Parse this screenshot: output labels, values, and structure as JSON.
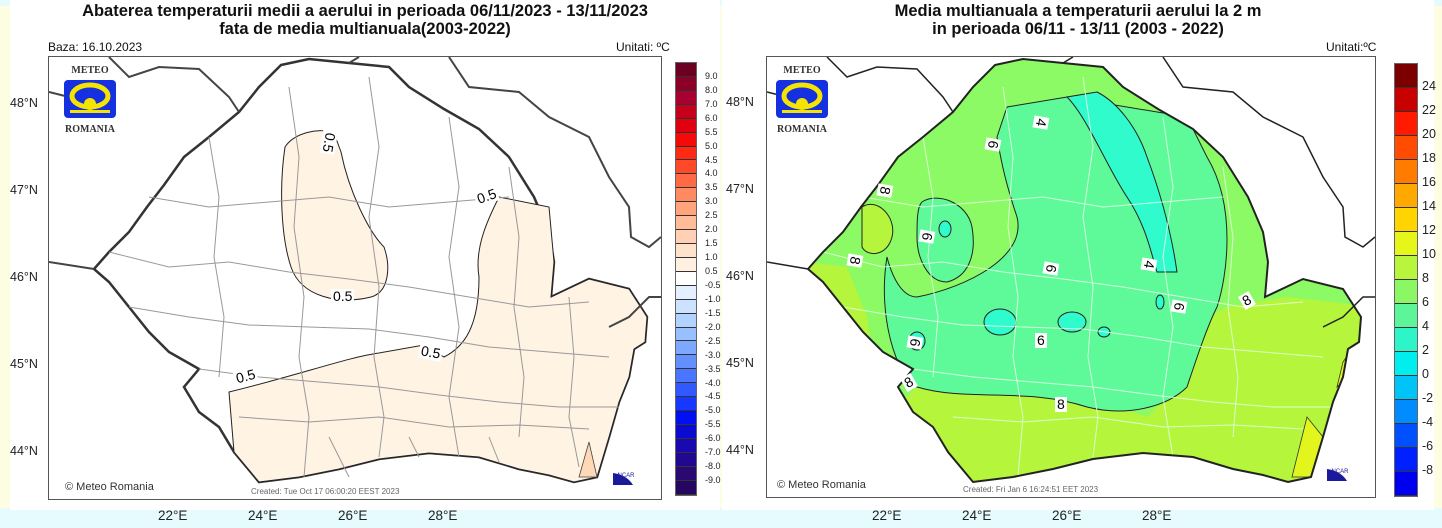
{
  "left_map": {
    "title_line1": "Abaterea temperaturii medii a aerului in perioada 06/11/2023 - 13/11/2023",
    "title_line2": "fata de media multianuala(2003-2022)",
    "base_label": "Baza: 16.10.2023",
    "units_label": "Unitati: ºC",
    "logo_top": "METEO",
    "logo_bottom": "ROMANIA",
    "copyright": "© Meteo Romania",
    "created": "Created: Tue Oct 17 06:00:20 EEST 2023",
    "ncar": "NCAR",
    "lat_labels": [
      "48°N",
      "47°N",
      "46°N",
      "45°N",
      "44°N"
    ],
    "lon_labels": [
      "22°E",
      "24°E",
      "26°E",
      "28°E"
    ],
    "contour_labels": [
      "0.5",
      "0.5",
      "0.5",
      "0.5",
      "0.5",
      "0.5"
    ],
    "colorbar": {
      "labels": [
        "9.0",
        "8.0",
        "7.0",
        "6.0",
        "5.5",
        "5.0",
        "4.5",
        "4.0",
        "3.5",
        "3.0",
        "2.5",
        "2.0",
        "1.5",
        "1.0",
        "0.5",
        "-0.5",
        "-1.0",
        "-1.5",
        "-2.0",
        "-2.5",
        "-3.0",
        "-3.5",
        "-4.0",
        "-4.5",
        "-5.0",
        "-5.5",
        "-6.0",
        "-7.0",
        "-8.0",
        "-9.0"
      ],
      "colors": [
        "#6b0022",
        "#8c0028",
        "#a80030",
        "#c4001c",
        "#e00010",
        "#f50a0a",
        "#ff2a14",
        "#ff4a2a",
        "#ff6a44",
        "#ff8a60",
        "#ffa47c",
        "#ffbc98",
        "#ffd0b4",
        "#ffe2cc",
        "#fff0e2",
        "#ffffff",
        "#e4f0ff",
        "#cce2ff",
        "#b2d2ff",
        "#98c0ff",
        "#7ea8ff",
        "#6490ff",
        "#4a76ff",
        "#305aff",
        "#1638ff",
        "#0010f0",
        "#0a0ad0",
        "#1a08b0",
        "#200890",
        "#2a0a70",
        "#260660"
      ]
    }
  },
  "right_map": {
    "title_line1": "Media multianuala a temperaturii aerului la 2 m",
    "title_line2": "in perioada 06/11 - 13/11 (2003 - 2022)",
    "units_label": "Unitati:ºC",
    "logo_top": "METEO",
    "logo_bottom": "ROMANIA",
    "copyright": "© Meteo Romania",
    "created": "Created: Fri Jan  6 16:24:51 EET 2023",
    "ncar": "NCAR",
    "lat_labels": [
      "48°N",
      "47°N",
      "46°N",
      "45°N",
      "44°N"
    ],
    "lon_labels": [
      "22°E",
      "24°E",
      "26°E",
      "28°E"
    ],
    "contour_labels": [
      "4",
      "6",
      "8",
      "6",
      "8",
      "4",
      "6",
      "8",
      "6",
      "6",
      "6",
      "8",
      "8"
    ],
    "colorbar": {
      "labels": [
        "24",
        "22",
        "20",
        "18",
        "16",
        "14",
        "12",
        "10",
        "8",
        "6",
        "4",
        "2",
        "0",
        "-2",
        "-4",
        "-6",
        "-8"
      ],
      "colors": [
        "#7d0000",
        "#c80000",
        "#ff1a00",
        "#ff4c00",
        "#ff7c00",
        "#ffa800",
        "#ffd400",
        "#e6f51a",
        "#b8f53c",
        "#8cf764",
        "#5cf59a",
        "#2ef5c8",
        "#00eeee",
        "#00c4f8",
        "#008cff",
        "#0050ff",
        "#0020ff",
        "#0000f0"
      ]
    }
  },
  "colors": {
    "positive_anomaly_fill": "#fff3e4",
    "field_8_10": "#b5f53c",
    "field_6_8": "#8cfa64",
    "field_4_6": "#5efa9a",
    "field_2_4": "#30fbcc",
    "coast_yellow": "#e2f51c"
  }
}
